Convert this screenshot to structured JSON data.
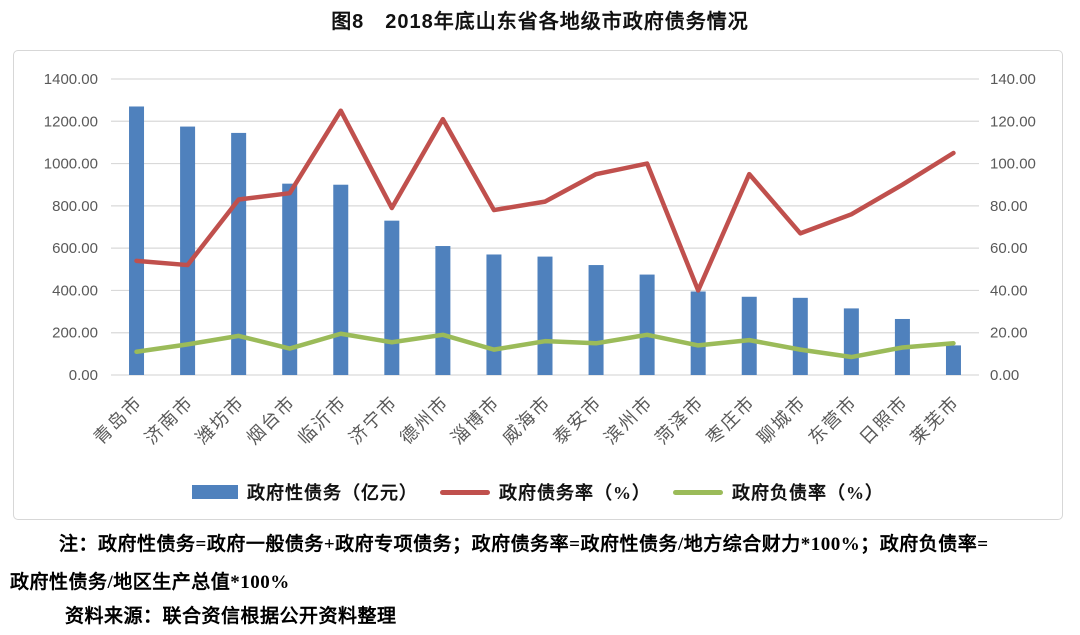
{
  "title": "图8　2018年底山东省各地级市政府债务情况",
  "notes": {
    "line1": "注：政府性债务=政府一般债务+政府专项债务；政府债务率=政府性债务/地方综合财力*100%；政府负债率=",
    "line2": "政府性债务/地区生产总值*100%",
    "source": "资料来源：联合资信根据公开资料整理"
  },
  "colors": {
    "bar": "#4F81BD",
    "debt_ratio_line": "#C0504D",
    "liability_ratio_line": "#9BBB59",
    "grid": "#D9D9D9",
    "axis_text": "#595959",
    "chart_border": "#D7D7D7"
  },
  "chart_data": {
    "type": "combo",
    "title": "图8　2018年底山东省各地级市政府债务情况",
    "categories": [
      "青岛市",
      "济南市",
      "潍坊市",
      "烟台市",
      "临沂市",
      "济宁市",
      "德州市",
      "淄博市",
      "威海市",
      "泰安市",
      "滨州市",
      "菏泽市",
      "枣庄市",
      "聊城市",
      "东营市",
      "日照市",
      "莱芜市"
    ],
    "series": [
      {
        "name": "政府性债务（亿元）",
        "type": "bar",
        "axis": "left",
        "color": "#4F81BD",
        "values": [
          1270,
          1175,
          1145,
          905,
          900,
          730,
          610,
          570,
          560,
          520,
          475,
          395,
          370,
          365,
          315,
          265,
          140
        ]
      },
      {
        "name": "政府债务率（%）",
        "type": "line",
        "axis": "right",
        "color": "#C0504D",
        "values": [
          54,
          52,
          83,
          86,
          125,
          79,
          121,
          78,
          82,
          95,
          100,
          40,
          95,
          67,
          76,
          90,
          105
        ]
      },
      {
        "name": "政府负债率（%）",
        "type": "line",
        "axis": "right",
        "color": "#9BBB59",
        "values": [
          11,
          14.5,
          18.5,
          12.5,
          19.5,
          15.5,
          19,
          12,
          16,
          15,
          19,
          14,
          16.5,
          12,
          8.5,
          13,
          15
        ]
      }
    ],
    "left_axis": {
      "min": 0,
      "max": 1400,
      "step": 200,
      "tick_labels": [
        "0.00",
        "200.00",
        "400.00",
        "600.00",
        "800.00",
        "1000.00",
        "1200.00",
        "1400.00"
      ]
    },
    "right_axis": {
      "min": 0,
      "max": 140,
      "step": 20,
      "tick_labels": [
        "0.00",
        "20.00",
        "40.00",
        "60.00",
        "80.00",
        "100.00",
        "120.00",
        "140.00"
      ]
    },
    "grid": true,
    "legend_position": "bottom"
  }
}
